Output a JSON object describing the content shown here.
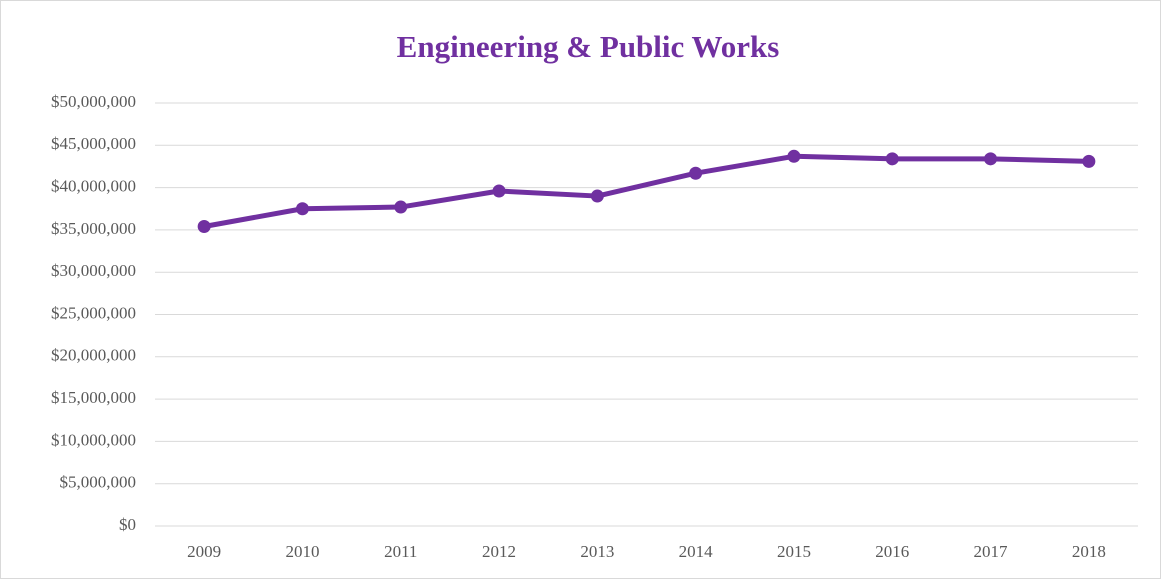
{
  "chart_data": {
    "type": "line",
    "title": "Engineering & Public Works",
    "categories": [
      "2009",
      "2010",
      "2011",
      "2012",
      "2013",
      "2014",
      "2015",
      "2016",
      "2017",
      "2018"
    ],
    "series": [
      {
        "name": "Engineering & Public Works",
        "color": "#7030a0",
        "values": [
          35400000,
          37500000,
          37700000,
          39600000,
          39000000,
          41700000,
          43700000,
          43400000,
          43400000,
          43100000
        ]
      }
    ],
    "ylim": [
      0,
      50000000
    ],
    "yticks": [
      {
        "value": 0,
        "label": "$0"
      },
      {
        "value": 5000000,
        "label": "$5,000,000"
      },
      {
        "value": 10000000,
        "label": "$10,000,000"
      },
      {
        "value": 15000000,
        "label": "$15,000,000"
      },
      {
        "value": 20000000,
        "label": "$20,000,000"
      },
      {
        "value": 25000000,
        "label": "$25,000,000"
      },
      {
        "value": 30000000,
        "label": "$30,000,000"
      },
      {
        "value": 35000000,
        "label": "$35,000,000"
      },
      {
        "value": 40000000,
        "label": "$40,000,000"
      },
      {
        "value": 45000000,
        "label": "$45,000,000"
      },
      {
        "value": 50000000,
        "label": "$50,000,000"
      }
    ],
    "grid": true
  }
}
